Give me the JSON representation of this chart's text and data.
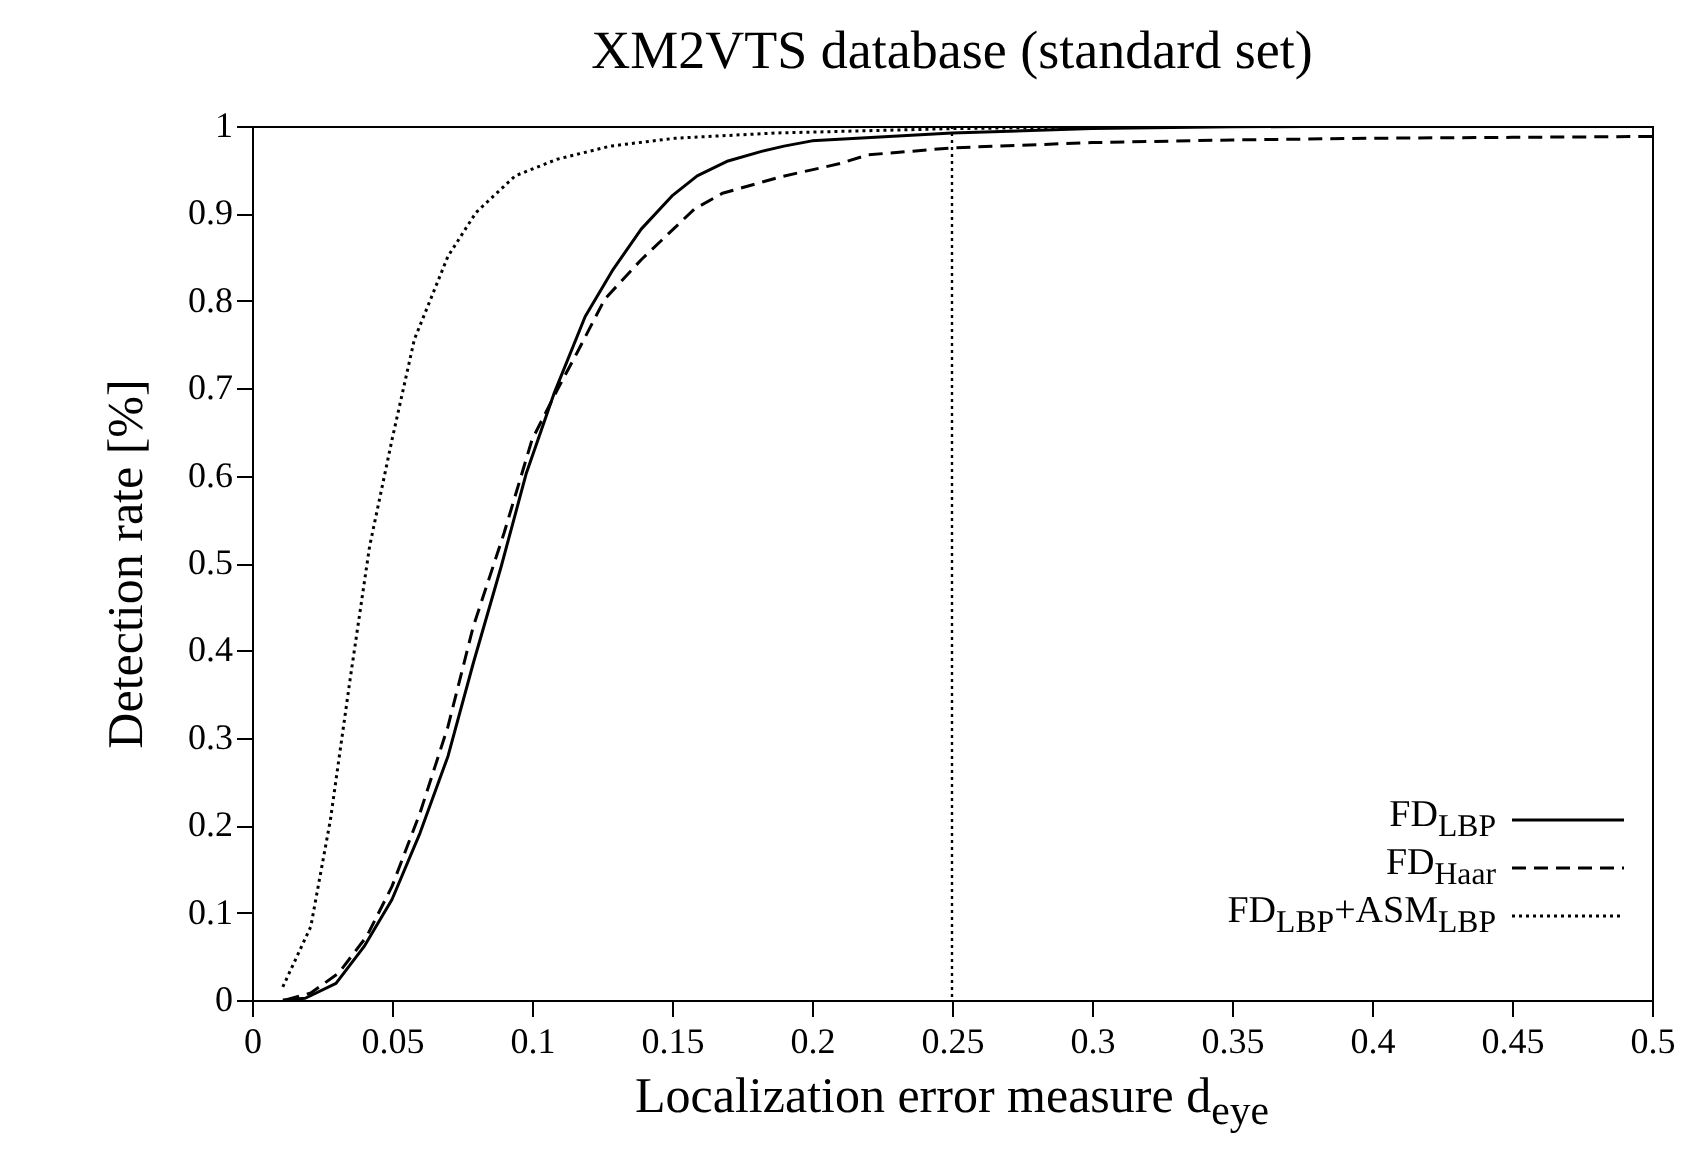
{
  "chart_data": {
    "type": "line",
    "title": "XM2VTS database (standard set)",
    "xlabel": "Localization error measure d$_{eye}$",
    "ylabel": "Detection rate [%]",
    "xlim": [
      0,
      0.5
    ],
    "ylim": [
      0,
      1
    ],
    "xticks": [
      0,
      0.05,
      0.1,
      0.15,
      0.2,
      0.25,
      0.3,
      0.35,
      0.4,
      0.45,
      0.5
    ],
    "yticks": [
      0,
      0.1,
      0.2,
      0.3,
      0.4,
      0.5,
      0.6,
      0.7,
      0.8,
      0.9,
      1
    ],
    "grid": false,
    "legend": "bottom right",
    "marker": "none",
    "ref_lines": [
      {
        "axis": "x",
        "value": 0.25,
        "line_style": "dotted",
        "color": "#000000"
      }
    ],
    "series": [
      {
        "name": "FD$_{LBP}$",
        "color": "#000000",
        "line_style": "solid",
        "x": [
          0.011,
          0.019,
          0.03,
          0.04,
          0.05,
          0.06,
          0.07,
          0.079,
          0.089,
          0.098,
          0.108,
          0.119,
          0.129,
          0.139,
          0.15,
          0.159,
          0.17,
          0.182,
          0.19,
          0.2,
          0.25,
          0.3,
          0.35,
          0.4,
          0.5
        ],
        "values": [
          0,
          0.002,
          0.019,
          0.061,
          0.115,
          0.191,
          0.279,
          0.385,
          0.496,
          0.603,
          0.695,
          0.782,
          0.836,
          0.882,
          0.92,
          0.943,
          0.96,
          0.971,
          0.977,
          0.983,
          0.992,
          0.997,
          0.999,
          1,
          1
        ]
      },
      {
        "name": "FD$_{Haar}$",
        "color": "#000000",
        "line_style": "dashed",
        "x": [
          0.012,
          0.021,
          0.031,
          0.041,
          0.05,
          0.06,
          0.07,
          0.079,
          0.09,
          0.1,
          0.109,
          0.116,
          0.126,
          0.139,
          0.158,
          0.168,
          0.189,
          0.21,
          0.22,
          0.25,
          0.3,
          0.35,
          0.4,
          0.45,
          0.5
        ],
        "values": [
          0,
          0.008,
          0.031,
          0.073,
          0.13,
          0.214,
          0.313,
          0.427,
          0.534,
          0.641,
          0.698,
          0.74,
          0.802,
          0.847,
          0.905,
          0.923,
          0.942,
          0.957,
          0.967,
          0.975,
          0.981,
          0.984,
          0.986,
          0.987,
          0.988
        ]
      },
      {
        "name": "FD$_{LBP}$+ASM$_{LBP}$",
        "color": "#000000",
        "line_style": "dotted",
        "x": [
          0.011,
          0.021,
          0.028,
          0.035,
          0.042,
          0.05,
          0.058,
          0.07,
          0.08,
          0.094,
          0.109,
          0.128,
          0.151,
          0.187,
          0.25,
          0.3,
          0.4,
          0.5
        ],
        "values": [
          0.015,
          0.084,
          0.206,
          0.366,
          0.519,
          0.641,
          0.756,
          0.851,
          0.901,
          0.943,
          0.962,
          0.977,
          0.986,
          0.992,
          0.997,
          0.999,
          1,
          1
        ]
      }
    ]
  }
}
